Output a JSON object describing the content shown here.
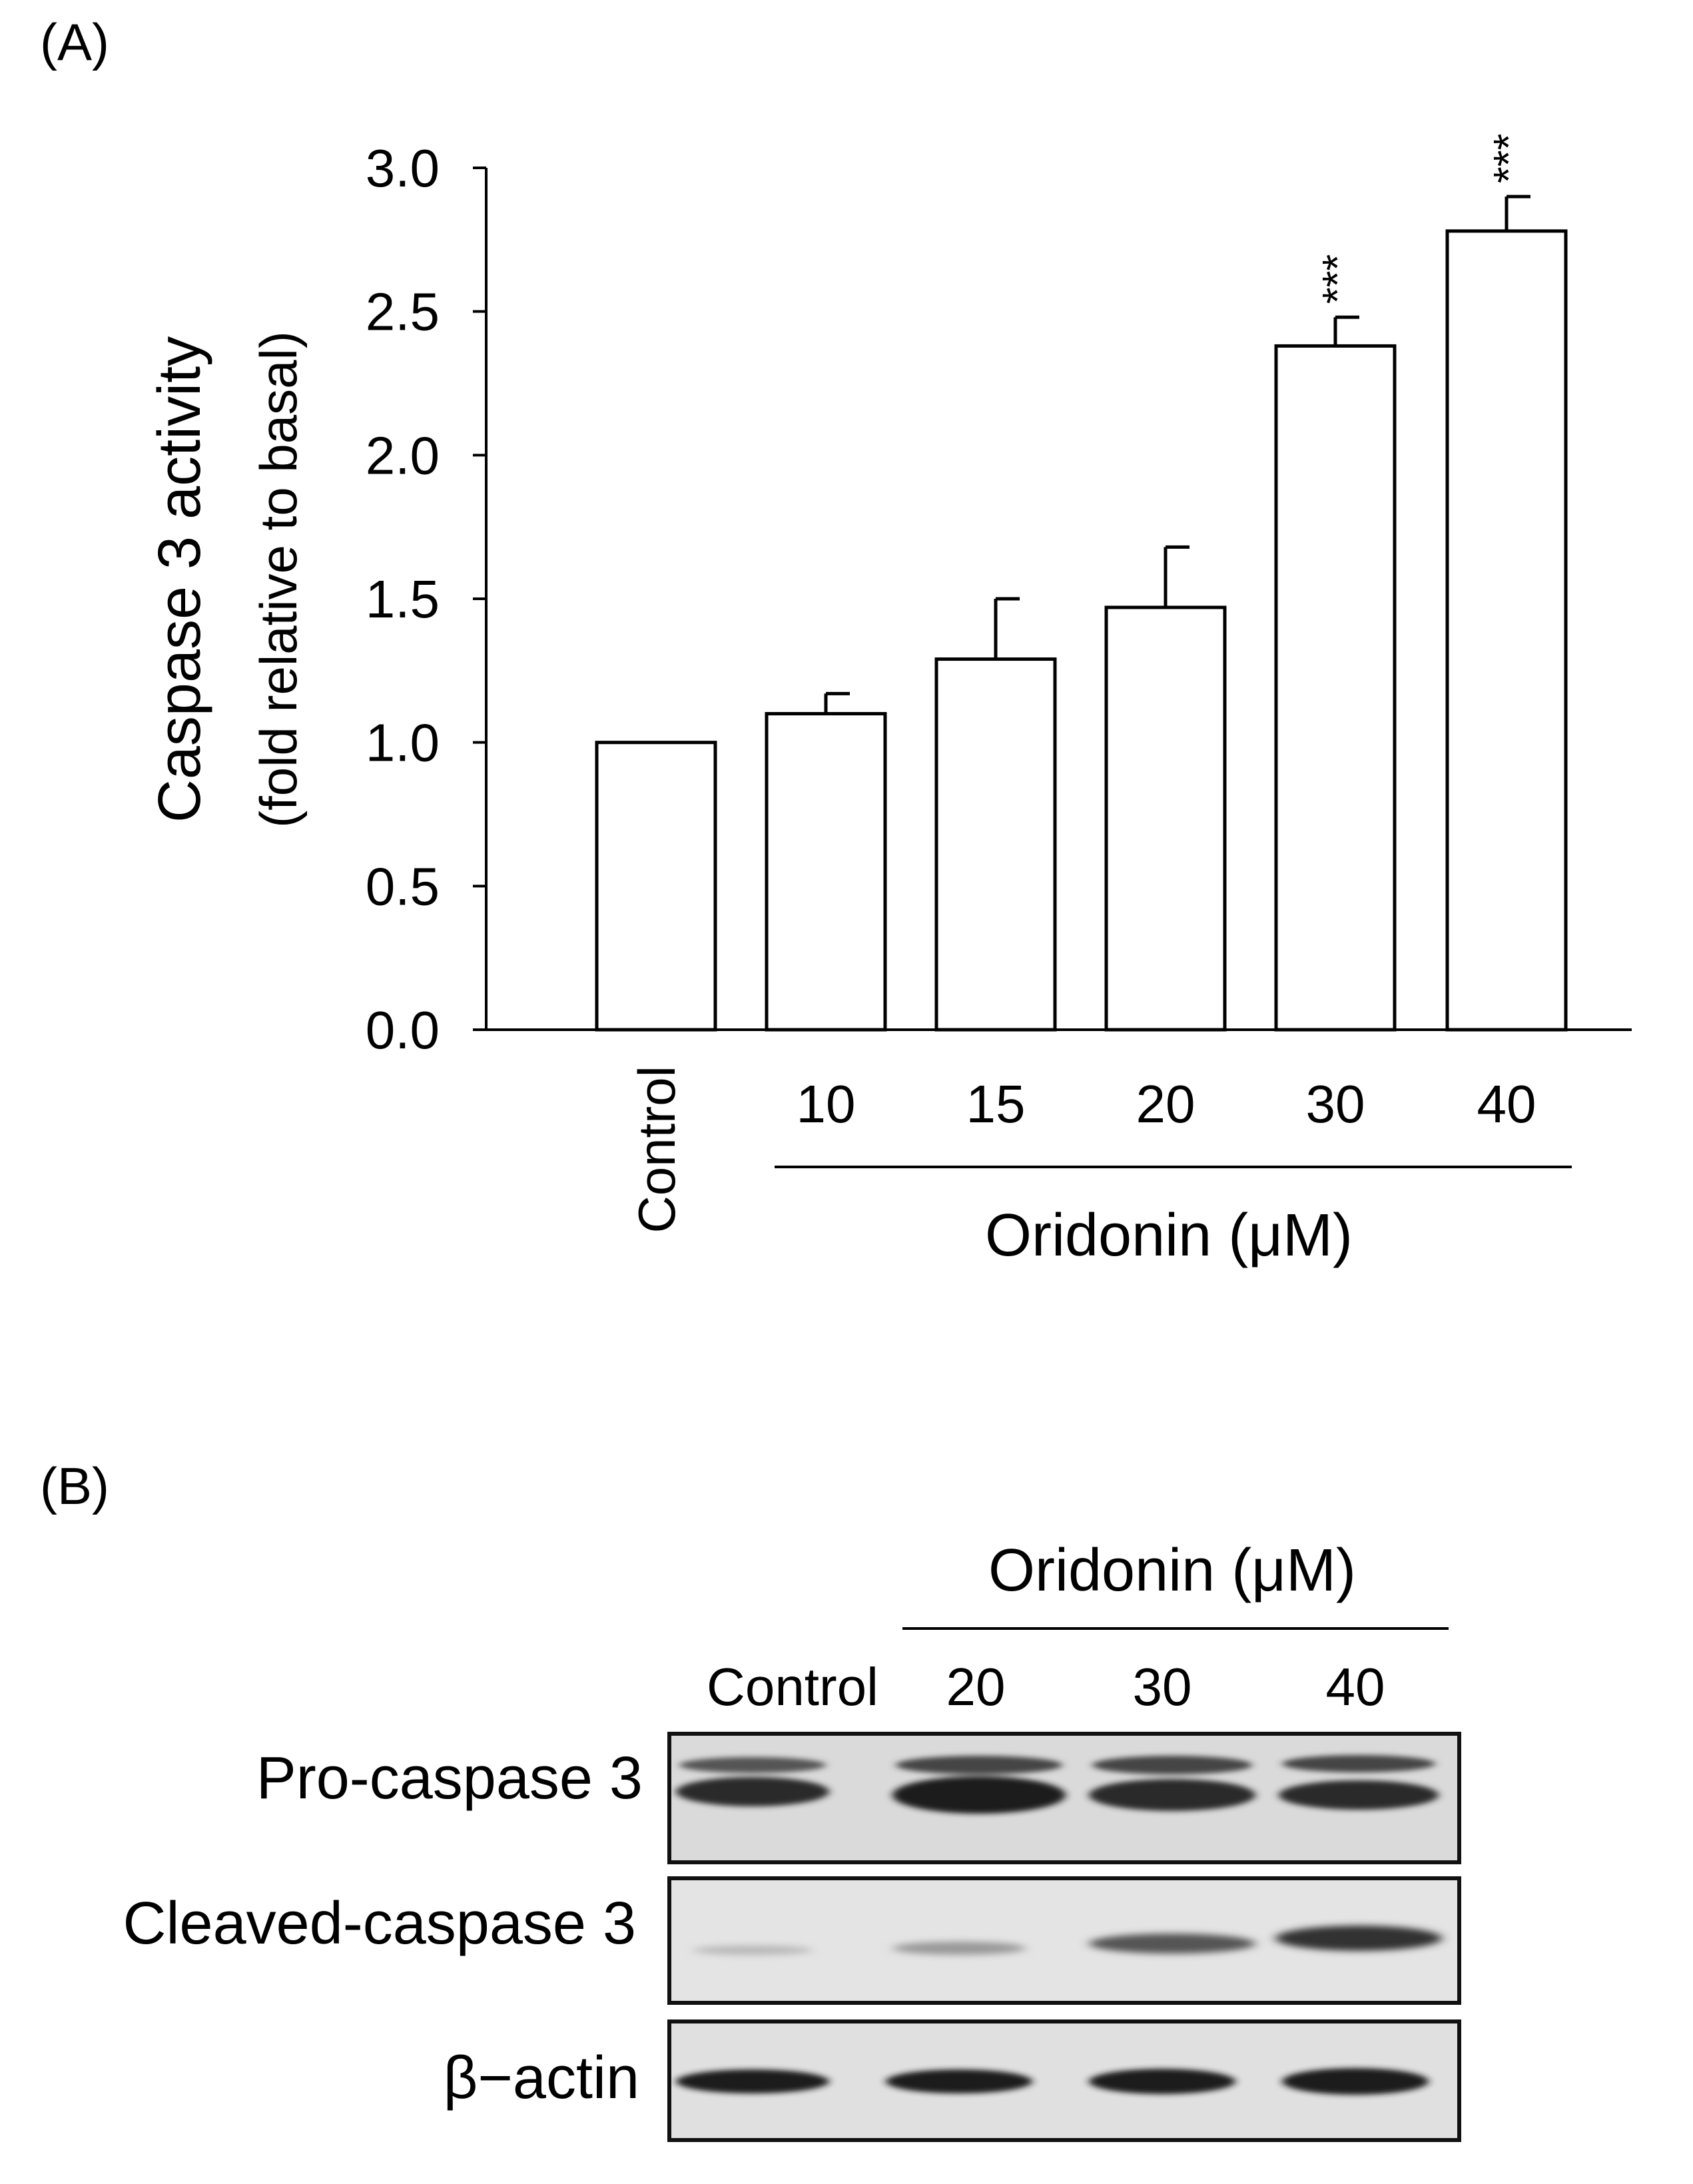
{
  "panels": {
    "a": {
      "label": "(A)"
    },
    "b": {
      "label": "(B)"
    }
  },
  "chart_data": {
    "type": "bar",
    "categories": [
      "Control",
      "10",
      "15",
      "20",
      "30",
      "40"
    ],
    "values": [
      1.0,
      1.1,
      1.29,
      1.47,
      2.38,
      2.78
    ],
    "error": [
      0.0,
      0.07,
      0.21,
      0.21,
      0.1,
      0.12
    ],
    "significance": [
      "",
      "",
      "",
      "",
      "***",
      "***"
    ],
    "ylabel": "Caspase 3 activity",
    "ylabel2": "(fold relative to basal)",
    "xlabel": "Oridonin (μM)",
    "ylim": [
      0,
      3.0
    ],
    "yticks": [
      "0.0",
      "0.5",
      "1.0",
      "1.5",
      "2.0",
      "2.5",
      "3.0"
    ],
    "bar_fill": "#ffffff",
    "grid": false
  },
  "blot": {
    "group_label": "Oridonin (μM)",
    "lanes": [
      "Control",
      "20",
      "30",
      "40"
    ],
    "rows": [
      {
        "label": "Pro-caspase 3"
      },
      {
        "label": "Cleaved-caspase 3"
      },
      {
        "label": "β−actin"
      }
    ]
  }
}
